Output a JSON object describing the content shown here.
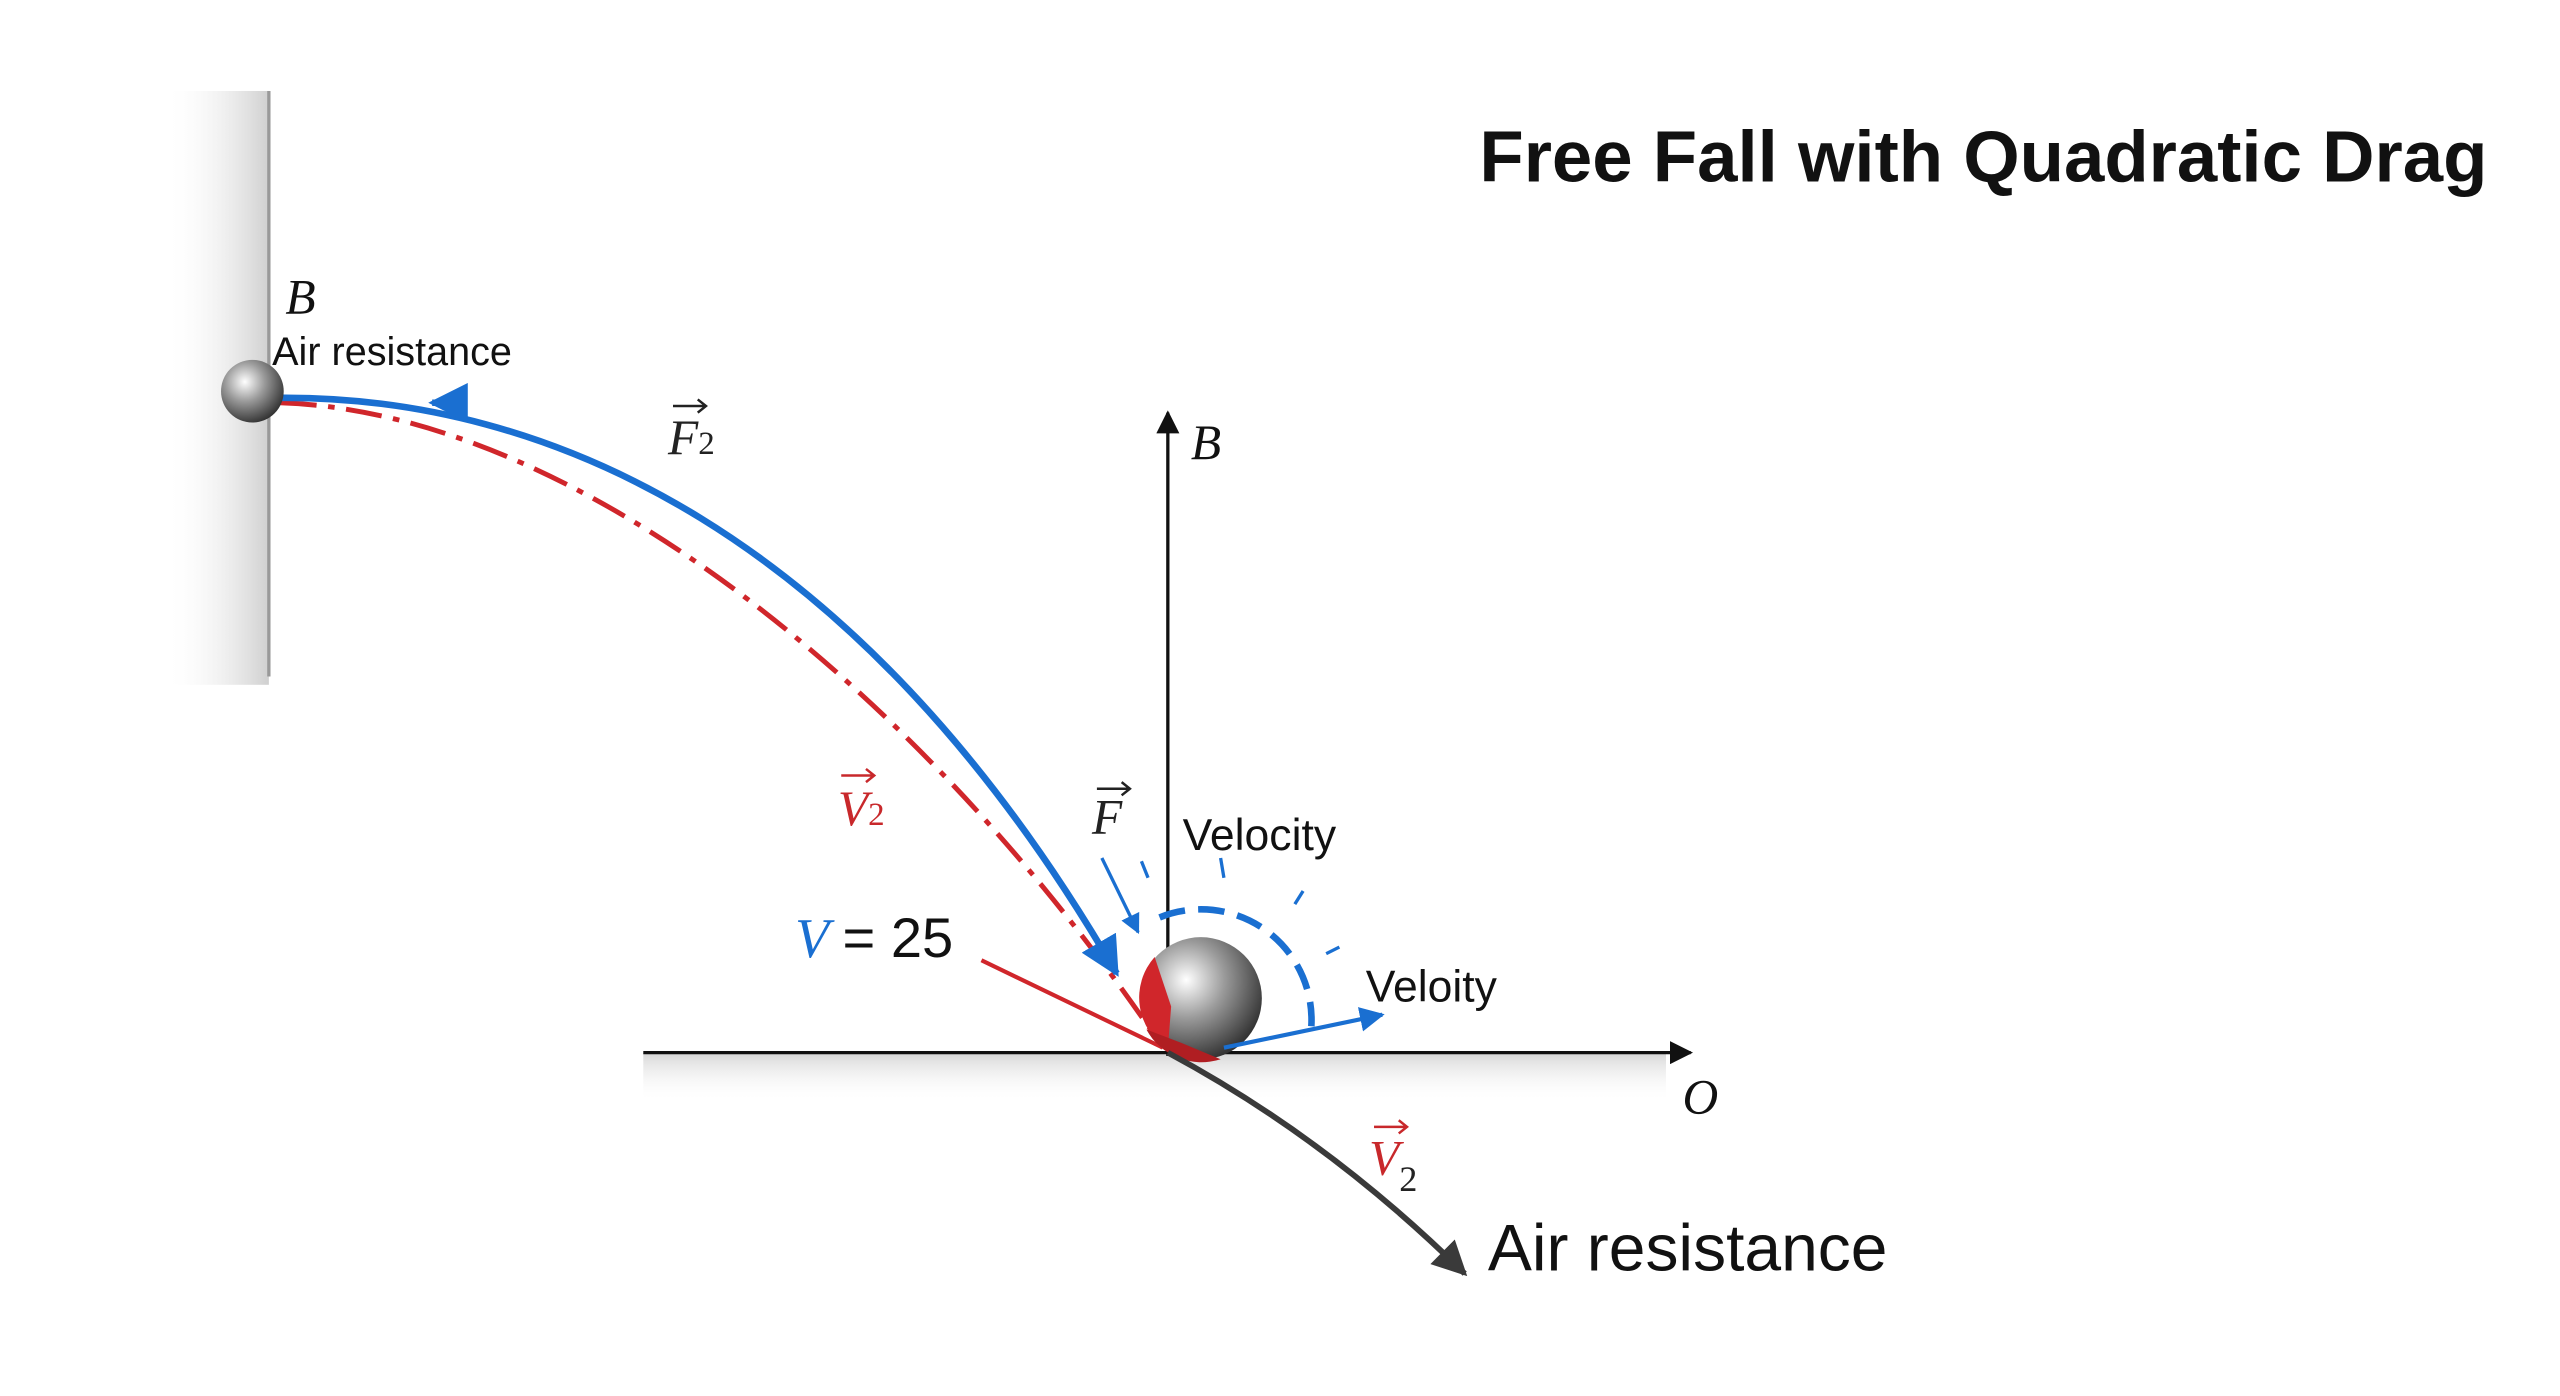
{
  "title": "Free Fall with Quadratic Drag",
  "labels": {
    "top_point": "B",
    "top_air_resistance": "Air resistance",
    "force_f2": {
      "symbol": "F",
      "subscript": "2"
    },
    "velocity_v2_red": {
      "symbol": "V",
      "subscript": "2"
    },
    "force_f": "F",
    "speed": {
      "symbol": "V",
      "text": "= 25"
    },
    "velocity": "Velocity",
    "veloity": "Veloity",
    "axis_b": "B",
    "axis_o": "O",
    "velocity_v2_lower": {
      "symbol": "V",
      "subscript": "2"
    },
    "air_resistance": "Air resistance"
  }
}
